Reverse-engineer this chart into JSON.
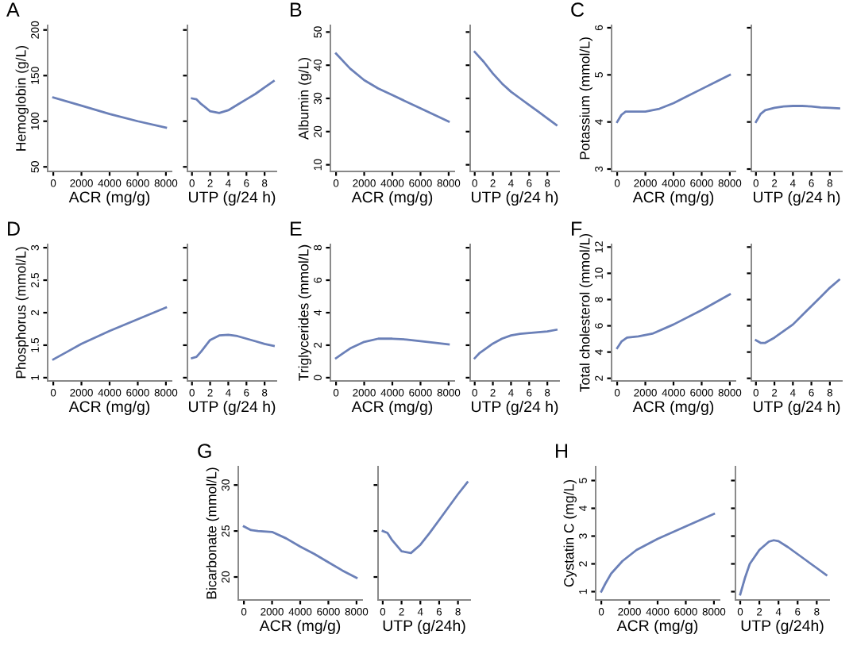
{
  "chart_data": [
    {
      "type": "line",
      "title": "A",
      "xlabel": "ACR (mg/g)",
      "ylabel": "Hemoglobin (g/L)",
      "xlim": [
        -400,
        8400
      ],
      "xticks": [
        0,
        2000,
        4000,
        6000,
        8000
      ],
      "ylim": [
        45,
        205
      ],
      "yticks": [
        50,
        100,
        150,
        200
      ],
      "series": [
        {
          "color": "#6b80b8",
          "x": [
            0,
            2000,
            4000,
            6000,
            8000
          ],
          "values": [
            126,
            117,
            108,
            100,
            93
          ]
        }
      ]
    },
    {
      "type": "line",
      "xlabel": "UTP (g/24 h)",
      "xlim": [
        -0.5,
        9.3
      ],
      "xticks": [
        0,
        2,
        4,
        6,
        8
      ],
      "ylim": [
        45,
        205
      ],
      "yticks": [
        50,
        100,
        150,
        200
      ],
      "tick_labels": "x",
      "series": [
        {
          "color": "#6b80b8",
          "x": [
            0,
            0.5,
            1,
            2,
            3,
            4,
            5,
            6,
            7,
            8,
            9
          ],
          "values": [
            125,
            124,
            119,
            111,
            109,
            112,
            118,
            124,
            130,
            137,
            144
          ]
        }
      ]
    },
    {
      "type": "line",
      "title": "B",
      "xlabel": "ACR (mg/g)",
      "ylabel": "Albumin (g/L)",
      "xlim": [
        -400,
        8400
      ],
      "xticks": [
        0,
        2000,
        4000,
        6000,
        8000
      ],
      "ylim": [
        8,
        52
      ],
      "yticks": [
        10,
        20,
        30,
        40,
        50
      ],
      "series": [
        {
          "color": "#6b80b8",
          "x": [
            0,
            1000,
            2000,
            3000,
            4000,
            6000,
            8000
          ],
          "values": [
            43.5,
            39,
            35.5,
            33,
            31,
            27,
            23
          ]
        }
      ]
    },
    {
      "type": "line",
      "xlabel": "UTP (g/24 h)",
      "xlim": [
        -0.5,
        9.3
      ],
      "xticks": [
        0,
        2,
        4,
        6,
        8
      ],
      "ylim": [
        8,
        52
      ],
      "yticks": [
        10,
        20,
        30,
        40,
        50
      ],
      "tick_labels": "x",
      "series": [
        {
          "color": "#6b80b8",
          "x": [
            0,
            1,
            2,
            3,
            4,
            5,
            6,
            7,
            8,
            9
          ],
          "values": [
            44,
            41,
            37.5,
            34.5,
            32,
            30,
            28,
            26,
            24,
            22
          ]
        }
      ]
    },
    {
      "type": "line",
      "title": "C",
      "xlabel": "ACR (mg/g)",
      "ylabel": "Potassium (mmol/L)",
      "xlim": [
        -400,
        8400
      ],
      "xticks": [
        0,
        2000,
        4000,
        6000,
        8000
      ],
      "ylim": [
        2.95,
        6.05
      ],
      "yticks": [
        3,
        4,
        5,
        6
      ],
      "series": [
        {
          "color": "#6b80b8",
          "x": [
            0,
            300,
            600,
            1000,
            2000,
            3000,
            4000,
            5000,
            6000,
            7000,
            8000
          ],
          "values": [
            4.0,
            4.15,
            4.22,
            4.22,
            4.22,
            4.28,
            4.4,
            4.55,
            4.7,
            4.85,
            5.0
          ]
        }
      ]
    },
    {
      "type": "line",
      "xlabel": "UTP (g/24 h)",
      "xlim": [
        -0.5,
        9.3
      ],
      "xticks": [
        0,
        2,
        4,
        6,
        8
      ],
      "ylim": [
        2.95,
        6.05
      ],
      "yticks": [
        3,
        4,
        5,
        6
      ],
      "tick_labels": "x",
      "series": [
        {
          "color": "#6b80b8",
          "x": [
            0,
            0.3,
            0.5,
            1,
            2,
            3,
            4,
            5,
            6,
            7,
            8,
            9
          ],
          "values": [
            4.0,
            4.1,
            4.17,
            4.25,
            4.3,
            4.33,
            4.34,
            4.34,
            4.33,
            4.31,
            4.3,
            4.29
          ]
        }
      ]
    },
    {
      "type": "line",
      "title": "D",
      "xlabel": "ACR (mg/g)",
      "ylabel": "Phosphorus (mmol/L)",
      "xlim": [
        -400,
        8400
      ],
      "xticks": [
        0,
        2000,
        4000,
        6000,
        8000
      ],
      "ylim": [
        0.95,
        3.05
      ],
      "yticks": [
        1,
        1.5,
        2,
        2.5,
        3
      ],
      "series": [
        {
          "color": "#6b80b8",
          "x": [
            0,
            1000,
            2000,
            4000,
            6000,
            8000
          ],
          "values": [
            1.28,
            1.4,
            1.52,
            1.72,
            1.9,
            2.08
          ]
        }
      ]
    },
    {
      "type": "line",
      "xlabel": "UTP (g/24 h)",
      "xlim": [
        -0.5,
        9.3
      ],
      "xticks": [
        0,
        2,
        4,
        6,
        8
      ],
      "ylim": [
        0.95,
        3.05
      ],
      "yticks": [
        1,
        1.5,
        2,
        2.5,
        3
      ],
      "tick_labels": "x",
      "series": [
        {
          "color": "#6b80b8",
          "x": [
            0,
            0.5,
            1,
            2,
            3,
            4,
            5,
            6,
            7,
            8,
            9
          ],
          "values": [
            1.3,
            1.32,
            1.4,
            1.58,
            1.65,
            1.66,
            1.64,
            1.6,
            1.56,
            1.52,
            1.49
          ]
        }
      ]
    },
    {
      "type": "line",
      "title": "E",
      "xlabel": "ACR (mg/g)",
      "ylabel": "Triglycerides (mmol/L)",
      "xlim": [
        -400,
        8400
      ],
      "xticks": [
        0,
        2000,
        4000,
        6000,
        8000
      ],
      "ylim": [
        -0.2,
        8.2
      ],
      "yticks": [
        0,
        2,
        4,
        6,
        8
      ],
      "series": [
        {
          "color": "#6b80b8",
          "x": [
            0,
            500,
            1000,
            2000,
            3000,
            4000,
            5000,
            6000,
            7000,
            8000
          ],
          "values": [
            1.2,
            1.5,
            1.8,
            2.2,
            2.4,
            2.4,
            2.35,
            2.25,
            2.15,
            2.05
          ]
        }
      ]
    },
    {
      "type": "line",
      "xlabel": "UTP (g/24 h)",
      "xlim": [
        -0.5,
        9.3
      ],
      "xticks": [
        0,
        2,
        4,
        6,
        8
      ],
      "ylim": [
        -0.2,
        8.2
      ],
      "yticks": [
        0,
        2,
        4,
        6,
        8
      ],
      "tick_labels": "x",
      "series": [
        {
          "color": "#6b80b8",
          "x": [
            0,
            0.5,
            1,
            2,
            3,
            4,
            5,
            6,
            7,
            8,
            9
          ],
          "values": [
            1.2,
            1.5,
            1.7,
            2.1,
            2.4,
            2.6,
            2.7,
            2.75,
            2.8,
            2.85,
            2.95
          ]
        }
      ]
    },
    {
      "type": "line",
      "title": "F",
      "xlabel": "ACR (mg/g)",
      "ylabel": "Total cholesterol (mmol/L)",
      "xlim": [
        -400,
        8400
      ],
      "xticks": [
        0,
        2000,
        4000,
        6000,
        8000
      ],
      "ylim": [
        1.8,
        12.2
      ],
      "yticks": [
        2,
        4,
        6,
        8,
        10,
        12
      ],
      "series": [
        {
          "color": "#6b80b8",
          "x": [
            0,
            300,
            700,
            1500,
            2500,
            4000,
            6000,
            8000
          ],
          "values": [
            4.3,
            4.8,
            5.1,
            5.2,
            5.4,
            6.1,
            7.2,
            8.4
          ]
        }
      ]
    },
    {
      "type": "line",
      "xlabel": "UTP (g/24 h)",
      "xlim": [
        -0.5,
        9.3
      ],
      "xticks": [
        0,
        2,
        4,
        6,
        8
      ],
      "ylim": [
        1.8,
        12.2
      ],
      "yticks": [
        2,
        4,
        6,
        8,
        10,
        12
      ],
      "tick_labels": "x",
      "series": [
        {
          "color": "#6b80b8",
          "x": [
            0,
            0.5,
            1,
            2,
            3,
            4,
            5,
            6,
            7,
            8,
            9
          ],
          "values": [
            4.9,
            4.7,
            4.7,
            5.1,
            5.6,
            6.1,
            6.8,
            7.5,
            8.2,
            8.9,
            9.5
          ]
        }
      ]
    },
    {
      "type": "line",
      "title": "G",
      "xlabel": "ACR (mg/g)",
      "ylabel": "Bicarbonate (mmol/L)",
      "xlim": [
        -400,
        8400
      ],
      "xticks": [
        0,
        2000,
        4000,
        6000,
        8000
      ],
      "ylim": [
        17.5,
        32
      ],
      "yticks": [
        20,
        25,
        30
      ],
      "series": [
        {
          "color": "#6b80b8",
          "x": [
            0,
            500,
            1000,
            2000,
            3000,
            4000,
            5000,
            6000,
            7000,
            8000
          ],
          "values": [
            25.5,
            25.1,
            25.0,
            24.9,
            24.2,
            23.3,
            22.5,
            21.6,
            20.7,
            19.9
          ]
        }
      ]
    },
    {
      "type": "line",
      "xlabel": "UTP (g/24h)",
      "xlim": [
        -0.5,
        9.3
      ],
      "xticks": [
        0,
        2,
        4,
        6,
        8
      ],
      "ylim": [
        17.5,
        32
      ],
      "yticks": [
        20,
        25,
        30
      ],
      "tick_labels": "x",
      "series": [
        {
          "color": "#6b80b8",
          "x": [
            0,
            0.5,
            1,
            2,
            3,
            4,
            5,
            6,
            7,
            8,
            9
          ],
          "values": [
            25,
            24.8,
            24,
            22.8,
            22.6,
            23.5,
            24.8,
            26.2,
            27.6,
            29,
            30.3
          ]
        }
      ]
    },
    {
      "type": "line",
      "title": "H",
      "xlabel": "ACR (mg/g)",
      "ylabel": "Cystatin C (mg/L)",
      "xlim": [
        -400,
        8400
      ],
      "xticks": [
        0,
        2000,
        4000,
        6000,
        8000
      ],
      "ylim": [
        0.7,
        5.5
      ],
      "yticks": [
        1,
        2,
        3,
        4,
        5
      ],
      "series": [
        {
          "color": "#6b80b8",
          "x": [
            0,
            300,
            700,
            1500,
            2500,
            4000,
            6000,
            8000
          ],
          "values": [
            1.0,
            1.3,
            1.65,
            2.1,
            2.5,
            2.9,
            3.35,
            3.8
          ]
        }
      ]
    },
    {
      "type": "line",
      "xlabel": "UTP (g/24h)",
      "xlim": [
        -0.5,
        9.3
      ],
      "xticks": [
        0,
        2,
        4,
        6,
        8
      ],
      "ylim": [
        0.7,
        5.5
      ],
      "yticks": [
        1,
        2,
        3,
        4,
        5
      ],
      "tick_labels": "x",
      "series": [
        {
          "color": "#6b80b8",
          "x": [
            0,
            0.5,
            1,
            2,
            3,
            3.5,
            4,
            5,
            6,
            7,
            8,
            9
          ],
          "values": [
            0.9,
            1.5,
            2.0,
            2.5,
            2.8,
            2.85,
            2.82,
            2.6,
            2.35,
            2.1,
            1.85,
            1.6
          ]
        }
      ]
    }
  ]
}
